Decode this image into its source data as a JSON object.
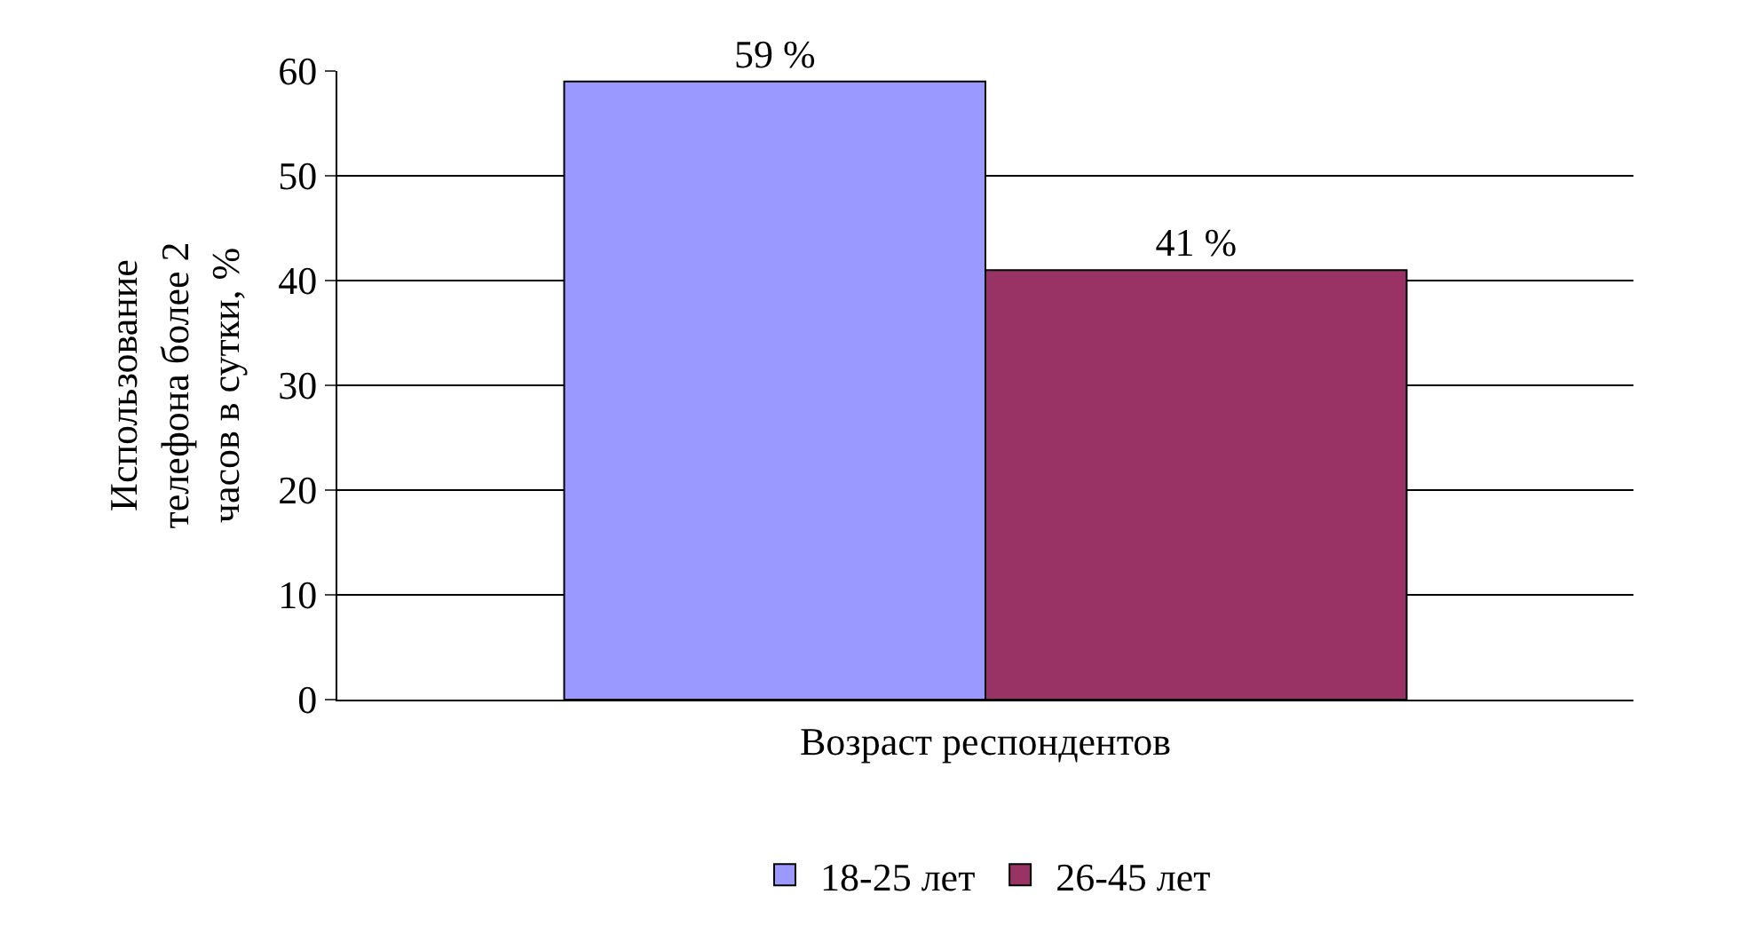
{
  "chart_data": {
    "type": "bar",
    "categories": [
      null
    ],
    "ylabel": "Использование\nтелефона более 2\nчасов в сутки, %",
    "xlabel": "Возраст респондентов",
    "series": [
      {
        "name": "18-25 лет",
        "color": "#9999ff",
        "values": [
          59
        ],
        "value_labels": [
          "59 %"
        ]
      },
      {
        "name": "26-45 лет",
        "color": "#993366",
        "values": [
          41
        ],
        "value_labels": [
          "41 %"
        ]
      }
    ],
    "ylim": [
      0,
      60
    ],
    "yticks": [
      0,
      10,
      20,
      30,
      40,
      50,
      60
    ],
    "grid": "y",
    "legend": "bottom",
    "tick_labels": "y"
  }
}
